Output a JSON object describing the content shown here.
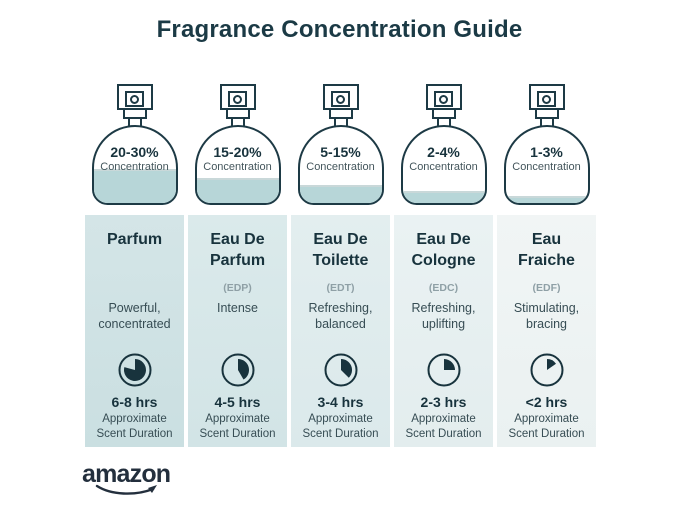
{
  "title": "Fragrance Concentration Guide",
  "brand": {
    "logo_text": "amazon"
  },
  "columns": [
    {
      "name": "Parfum",
      "abbr": "",
      "concentration": "20-30%",
      "concentration_label": "Concentration",
      "fill_percent": 45,
      "description": "Powerful,\nconcentrated",
      "duration": "6-8 hrs",
      "duration_label": "Approximate\nScent Duration",
      "clock_degrees": 285
    },
    {
      "name": "Eau De\nParfum",
      "abbr": "(EDP)",
      "concentration": "15-20%",
      "concentration_label": "Concentration",
      "fill_percent": 33,
      "description": "Intense",
      "duration": "4-5 hrs",
      "duration_label": "Approximate\nScent Duration",
      "clock_degrees": 150
    },
    {
      "name": "Eau De\nToilette",
      "abbr": "(EDT)",
      "concentration": "5-15%",
      "concentration_label": "Concentration",
      "fill_percent": 24,
      "description": "Refreshing,\nbalanced",
      "duration": "3-4 hrs",
      "duration_label": "Approximate\nScent Duration",
      "clock_degrees": 135
    },
    {
      "name": "Eau De\nCologne",
      "abbr": "(EDC)",
      "concentration": "2-4%",
      "concentration_label": "Concentration",
      "fill_percent": 16,
      "description": "Refreshing,\nuplifting",
      "duration": "2-3 hrs",
      "duration_label": "Approximate\nScent Duration",
      "clock_degrees": 90
    },
    {
      "name": "Eau\nFraiche",
      "abbr": "(EDF)",
      "concentration": "1-3%",
      "concentration_label": "Concentration",
      "fill_percent": 9,
      "description": "Stimulating,\nbracing",
      "duration": "<2 hrs",
      "duration_label": "Approximate\nScent Duration",
      "clock_degrees": 55
    }
  ],
  "colors": {
    "outline": "#1d3a45",
    "title_text": "#1b3a45",
    "liquid": "#b7d6d8",
    "logo": "#232f3d"
  }
}
